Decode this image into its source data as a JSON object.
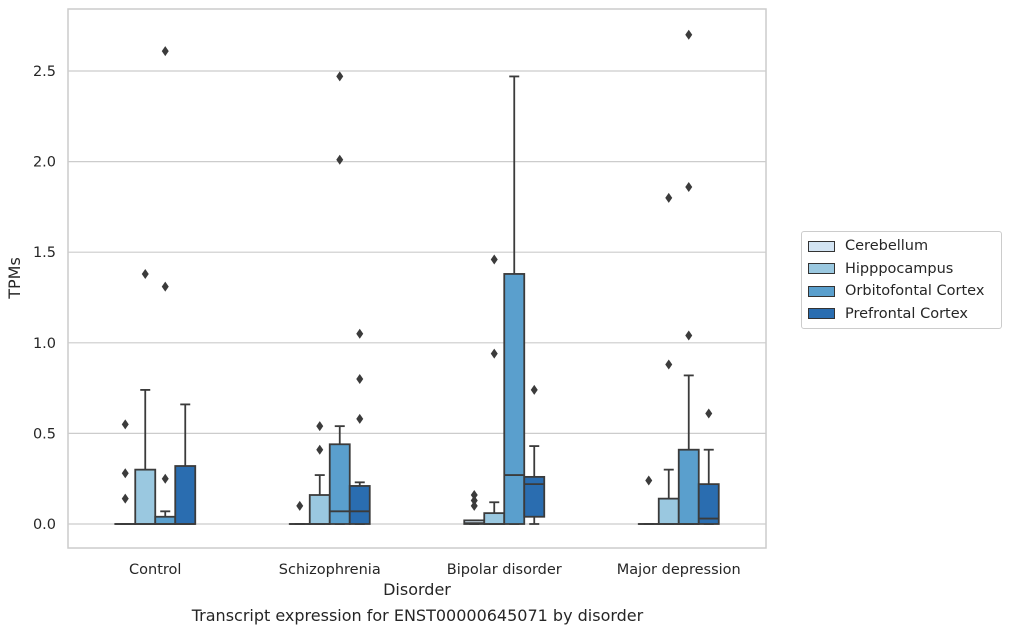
{
  "chart_data": {
    "type": "box",
    "xlabel": "Disorder",
    "ylabel": "TPMs",
    "ylim": [
      -0.13,
      2.85
    ],
    "yticks": [
      0.0,
      0.5,
      1.0,
      1.5,
      2.0,
      2.5
    ],
    "ytick_labels": [
      "0.0",
      "0.5",
      "1.0",
      "1.5",
      "2.0",
      "2.5"
    ],
    "categories": [
      "Control",
      "Schizophrenia",
      "Bipolar disorder",
      "Major depression"
    ],
    "grid": "horizontal",
    "legend_position": "right",
    "series": [
      {
        "name": "Cerebellum",
        "color": "#d3e4f3",
        "boxes": [
          {
            "q1": 0.0,
            "median": 0.0,
            "q3": 0.0,
            "whisker_low": 0.0,
            "whisker_high": 0.0,
            "outliers": [
              0.55,
              0.28,
              0.14
            ]
          },
          {
            "q1": 0.0,
            "median": 0.0,
            "q3": 0.0,
            "whisker_low": 0.0,
            "whisker_high": 0.0,
            "outliers": [
              0.1
            ]
          },
          {
            "q1": 0.0,
            "median": 0.005,
            "q3": 0.02,
            "whisker_low": 0.0,
            "whisker_high": 0.02,
            "outliers": [
              0.16,
              0.13,
              0.1
            ]
          },
          {
            "q1": 0.0,
            "median": 0.0,
            "q3": 0.0,
            "whisker_low": 0.0,
            "whisker_high": 0.0,
            "outliers": [
              0.24
            ]
          }
        ]
      },
      {
        "name": "Hipppocampus",
        "color": "#9ac8e0",
        "boxes": [
          {
            "q1": 0.0,
            "median": 0.0,
            "q3": 0.3,
            "whisker_low": 0.0,
            "whisker_high": 0.74,
            "outliers": [
              1.38
            ]
          },
          {
            "q1": 0.0,
            "median": 0.0,
            "q3": 0.16,
            "whisker_low": 0.0,
            "whisker_high": 0.27,
            "outliers": [
              0.54,
              0.41
            ]
          },
          {
            "q1": 0.0,
            "median": 0.0,
            "q3": 0.06,
            "whisker_low": 0.0,
            "whisker_high": 0.12,
            "outliers": [
              1.46,
              0.94
            ]
          },
          {
            "q1": 0.0,
            "median": 0.0,
            "q3": 0.14,
            "whisker_low": 0.0,
            "whisker_high": 0.3,
            "outliers": [
              1.8,
              0.88
            ]
          }
        ]
      },
      {
        "name": "Orbitofontal Cortex",
        "color": "#5a9fcd",
        "boxes": [
          {
            "q1": 0.0,
            "median": 0.0,
            "q3": 0.04,
            "whisker_low": 0.0,
            "whisker_high": 0.07,
            "outliers": [
              2.61,
              1.31,
              0.25
            ]
          },
          {
            "q1": 0.0,
            "median": 0.07,
            "q3": 0.44,
            "whisker_low": 0.0,
            "whisker_high": 0.54,
            "outliers": [
              2.47,
              2.01
            ]
          },
          {
            "q1": 0.0,
            "median": 0.27,
            "q3": 1.38,
            "whisker_low": 0.0,
            "whisker_high": 2.47,
            "outliers": []
          },
          {
            "q1": 0.0,
            "median": 0.0,
            "q3": 0.41,
            "whisker_low": 0.0,
            "whisker_high": 0.82,
            "outliers": [
              2.7,
              1.86,
              1.04
            ]
          }
        ]
      },
      {
        "name": "Prefrontal Cortex",
        "color": "#2a6db0",
        "boxes": [
          {
            "q1": 0.0,
            "median": 0.0,
            "q3": 0.32,
            "whisker_low": 0.0,
            "whisker_high": 0.66,
            "outliers": []
          },
          {
            "q1": 0.0,
            "median": 0.07,
            "q3": 0.21,
            "whisker_low": 0.0,
            "whisker_high": 0.23,
            "outliers": [
              1.05,
              0.8,
              0.58
            ]
          },
          {
            "q1": 0.04,
            "median": 0.22,
            "q3": 0.26,
            "whisker_low": 0.0,
            "whisker_high": 0.43,
            "outliers": [
              0.74
            ]
          },
          {
            "q1": 0.0,
            "median": 0.03,
            "q3": 0.22,
            "whisker_low": 0.0,
            "whisker_high": 0.41,
            "outliers": [
              0.61
            ]
          }
        ]
      }
    ]
  },
  "caption": "Transcript expression for ENST00000645071 by disorder"
}
